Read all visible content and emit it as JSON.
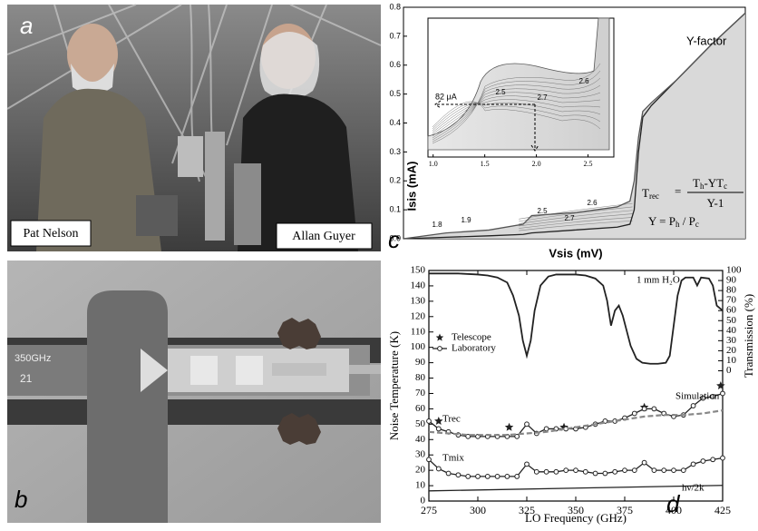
{
  "panels": {
    "a": {
      "label": "a",
      "people": [
        "Pat Nelson",
        "Allan Guyer"
      ]
    },
    "b": {
      "label": "b",
      "chip_marks": [
        "350GHz",
        "21"
      ]
    }
  },
  "chart_data": [
    {
      "type": "line",
      "panel_label": "c",
      "xlabel": "Vsis (mV)",
      "ylabel": "Isis (mA)",
      "xlim": [
        0,
        4
      ],
      "ylim": [
        0,
        0.8
      ],
      "yticks": [
        {
          "value": 0,
          "label": "0.0"
        },
        0.1,
        0.2,
        0.3,
        0.4,
        0.5,
        0.6,
        0.7,
        0.8
      ],
      "x": [
        0,
        0.5,
        1.0,
        1.4,
        1.5,
        2.0,
        2.5,
        2.65,
        2.7,
        2.75,
        2.8,
        2.9,
        3.2,
        3.6,
        4.0
      ],
      "series": [
        {
          "color": "#222222",
          "values": [
            0,
            0.005,
            0.01,
            0.015,
            0.02,
            0.03,
            0.04,
            0.05,
            0.1,
            0.3,
            0.42,
            0.46,
            0.55,
            0.67,
            0.78
          ]
        },
        {
          "color": "#555555",
          "values": [
            0,
            0.02,
            0.03,
            0.05,
            0.08,
            0.09,
            0.11,
            0.13,
            0.2,
            0.35,
            0.44,
            0.47,
            0.55,
            0.67,
            0.78
          ]
        }
      ],
      "annotations": {
        "y_factor": "Y-factor",
        "contours": [
          "1.8",
          "1.9",
          "2.5",
          "2.6",
          "2.7"
        ]
      },
      "formula": {
        "trec": [
          "T",
          "rec"
        ],
        "eq": "=",
        "numerator": [
          "T",
          "h",
          "-YT",
          "c"
        ],
        "denominator": "Y-1",
        "y_def": [
          "Y = P",
          "h",
          " / P",
          "c"
        ]
      },
      "inset": {
        "xlim": [
          0.95,
          2.75
        ],
        "xticks": [
          {
            "value": 1,
            "label": "1.0"
          },
          1.5,
          {
            "value": 2,
            "label": "2.0"
          },
          2.5
        ],
        "current_label": "82 μA",
        "contours": [
          "2.5",
          "2.7",
          "2.6"
        ]
      }
    },
    {
      "type": "line",
      "panel_label": "d",
      "xlabel": "LO Frequency (GHz)",
      "ylabel": "Noise Temperature (K)",
      "y2label": "Transmission (%)",
      "xlim": [
        275,
        425
      ],
      "xticks": [
        275,
        300,
        325,
        350,
        375,
        400,
        425
      ],
      "ylim": [
        0,
        150
      ],
      "yticks": [
        0,
        10,
        20,
        30,
        40,
        50,
        60,
        70,
        80,
        90,
        100,
        110,
        120,
        130,
        140,
        150
      ],
      "y2lim": [
        0,
        100
      ],
      "y2ticks": [
        0,
        10,
        20,
        30,
        40,
        50,
        60,
        70,
        80,
        90,
        100
      ],
      "series": [
        {
          "name": "Telescope",
          "style": "star",
          "color": "#222222",
          "x": [
            280,
            316,
            344,
            385,
            424
          ],
          "values": [
            52,
            48,
            48,
            61,
            75
          ]
        },
        {
          "name": "Laboratory",
          "style": "line-circle",
          "color": "#222222",
          "x": [
            275,
            280,
            285,
            290,
            295,
            300,
            305,
            310,
            315,
            320,
            325,
            330,
            335,
            340,
            345,
            350,
            355,
            360,
            365,
            370,
            375,
            380,
            385,
            390,
            395,
            400,
            405,
            410,
            415,
            420,
            425
          ],
          "values": [
            52,
            47,
            45,
            43,
            42,
            42,
            42,
            42,
            42,
            42,
            50,
            44,
            47,
            47,
            47,
            47,
            48,
            50,
            52,
            52,
            54,
            57,
            60,
            60,
            57,
            55,
            56,
            62,
            67,
            68,
            70
          ]
        },
        {
          "style": "line-circle",
          "color": "#222222",
          "x": [
            275,
            280,
            285,
            290,
            295,
            300,
            305,
            310,
            315,
            320,
            325,
            330,
            335,
            340,
            345,
            350,
            355,
            360,
            365,
            370,
            375,
            380,
            385,
            390,
            395,
            400,
            405,
            410,
            415,
            420,
            425
          ],
          "values": [
            27,
            21,
            18,
            17,
            16,
            16,
            16,
            16,
            16,
            16,
            24,
            19,
            19,
            19,
            20,
            20,
            19,
            18,
            18,
            19,
            20,
            20,
            25,
            20,
            20,
            20,
            20,
            24,
            26,
            27,
            28
          ]
        },
        {
          "style": "dashed",
          "color": "#888888",
          "x": [
            275,
            285,
            295,
            305,
            315,
            325,
            335,
            345,
            355,
            365,
            375,
            385,
            395,
            405,
            415,
            425
          ],
          "values": [
            45,
            44,
            43,
            43,
            43,
            44,
            45,
            47,
            49,
            51,
            53,
            55,
            56,
            56,
            57,
            59
          ]
        },
        {
          "style": "line",
          "color": "#222222",
          "x": [
            275,
            425
          ],
          "values": [
            6.6,
            10.2
          ]
        },
        {
          "style": "line",
          "color": "#222222",
          "axis": "y2",
          "x": [
            275,
            280,
            290,
            300,
            305,
            310,
            315,
            318,
            321,
            323,
            325,
            327,
            329,
            332,
            336,
            340,
            345,
            350,
            355,
            360,
            364,
            366,
            368,
            370,
            372,
            374,
            376,
            378,
            381,
            384,
            388,
            392,
            396,
            398,
            400,
            402,
            404,
            406,
            410,
            412,
            414,
            418,
            420,
            422,
            425
          ],
          "values": [
            97,
            97,
            97,
            96,
            95,
            93,
            88,
            75,
            55,
            30,
            15,
            30,
            60,
            85,
            94,
            96,
            96,
            96,
            95,
            92,
            85,
            70,
            45,
            60,
            65,
            55,
            40,
            25,
            12,
            8,
            7,
            7,
            8,
            15,
            45,
            75,
            90,
            93,
            93,
            85,
            93,
            92,
            85,
            65,
            60
          ]
        }
      ],
      "annotations": [
        "1 mm H₂O",
        "Trec",
        "Simulation",
        "Tmix",
        "hν/2k"
      ]
    }
  ]
}
